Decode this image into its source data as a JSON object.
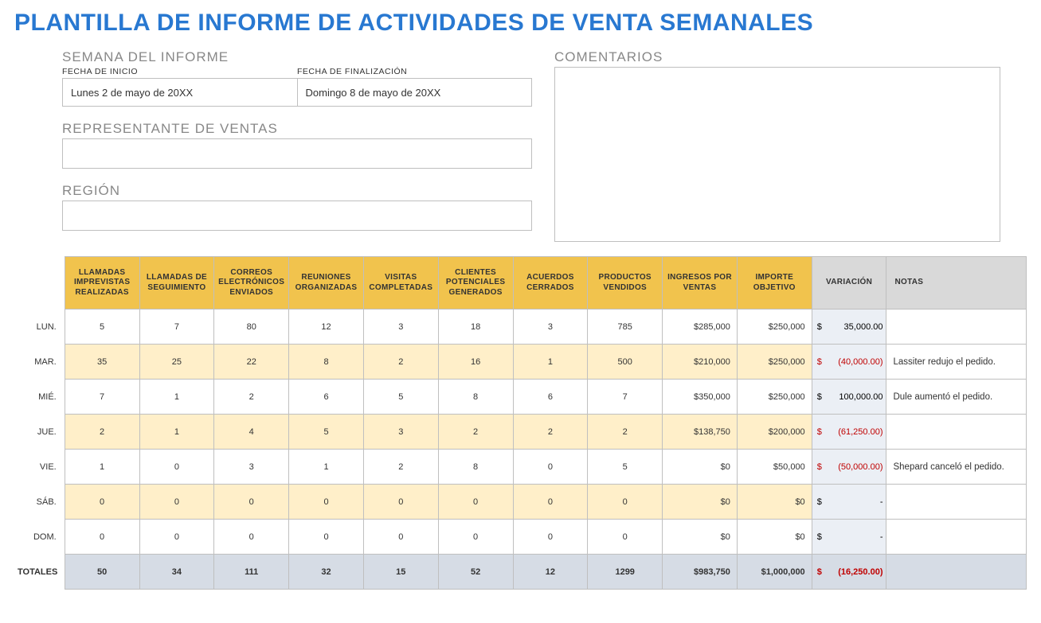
{
  "title": "PLANTILLA DE INFORME DE ACTIVIDADES DE VENTA SEMANALES",
  "sections": {
    "week_label": "SEMANA DEL INFORME",
    "start_date_label": "FECHA DE INICIO",
    "end_date_label": "FECHA DE FINALIZACIÓN",
    "start_date": "Lunes 2 de mayo de 20XX",
    "end_date": "Domingo 8 de mayo de 20XX",
    "rep_label": "REPRESENTANTE DE VENTAS",
    "rep_value": "",
    "region_label": "REGIÓN",
    "region_value": "",
    "comments_label": "COMENTARIOS",
    "comments_value": ""
  },
  "table": {
    "columns": [
      "LLAMADAS IMPREVISTAS REALIZADAS",
      "LLAMADAS DE SEGUIMIENTO",
      "CORREOS ELECTRÓNICOS ENVIADOS",
      "REUNIONES ORGANIZADAS",
      "VISITAS COMPLETADAS",
      "CLIENTES POTENCIALES GENERADOS",
      "ACUERDOS CERRADOS",
      "PRODUCTOS VENDIDOS",
      "INGRESOS POR VENTAS",
      "IMPORTE OBJETIVO"
    ],
    "var_col": "VARIACIÓN",
    "notes_col": "NOTAS",
    "row_labels": [
      "LUN.",
      "MAR.",
      "MIÉ.",
      "JUE.",
      "VIE.",
      "SÁB.",
      "DOM."
    ],
    "totals_label": "TOTALES",
    "rows": [
      {
        "cells": [
          "5",
          "7",
          "80",
          "12",
          "3",
          "18",
          "3",
          "785",
          "$285,000",
          "$250,000"
        ],
        "variance": {
          "text": "$   35,000.00",
          "neg": false
        },
        "notes": ""
      },
      {
        "cells": [
          "35",
          "25",
          "22",
          "8",
          "2",
          "16",
          "1",
          "500",
          "$210,000",
          "$250,000"
        ],
        "variance": {
          "text": "$  (40,000.00)",
          "neg": true
        },
        "notes": "Lassiter redujo el pedido."
      },
      {
        "cells": [
          "7",
          "1",
          "2",
          "6",
          "5",
          "8",
          "6",
          "7",
          "$350,000",
          "$250,000"
        ],
        "variance": {
          "text": "$ 100,000.00",
          "neg": false
        },
        "notes": "Dule aumentó el pedido."
      },
      {
        "cells": [
          "2",
          "1",
          "4",
          "5",
          "3",
          "2",
          "2",
          "2",
          "$138,750",
          "$200,000"
        ],
        "variance": {
          "text": "$  (61,250.00)",
          "neg": true
        },
        "notes": ""
      },
      {
        "cells": [
          "1",
          "0",
          "3",
          "1",
          "2",
          "8",
          "0",
          "5",
          "$0",
          "$50,000"
        ],
        "variance": {
          "text": "$  (50,000.00)",
          "neg": true
        },
        "notes": "Shepard canceló el pedido."
      },
      {
        "cells": [
          "0",
          "0",
          "0",
          "0",
          "0",
          "0",
          "0",
          "0",
          "$0",
          "$0"
        ],
        "variance": {
          "text": "$            -",
          "neg": false,
          "dash": true
        },
        "notes": ""
      },
      {
        "cells": [
          "0",
          "0",
          "0",
          "0",
          "0",
          "0",
          "0",
          "0",
          "$0",
          "$0"
        ],
        "variance": {
          "text": "$            -",
          "neg": false,
          "dash": true
        },
        "notes": ""
      }
    ],
    "totals": {
      "cells": [
        "50",
        "34",
        "111",
        "32",
        "15",
        "52",
        "12",
        "1299",
        "$983,750",
        "$1,000,000"
      ],
      "variance": {
        "text": "$  (16,250.00)",
        "neg": true
      },
      "notes": ""
    },
    "money_cols": [
      8,
      9
    ],
    "header_bg": "#f1c34d",
    "alt_row_bg": "#ffefc9",
    "gray_bg": "#ebeff5",
    "totals_bg": "#d6dce5",
    "neg_color": "#c00000"
  }
}
